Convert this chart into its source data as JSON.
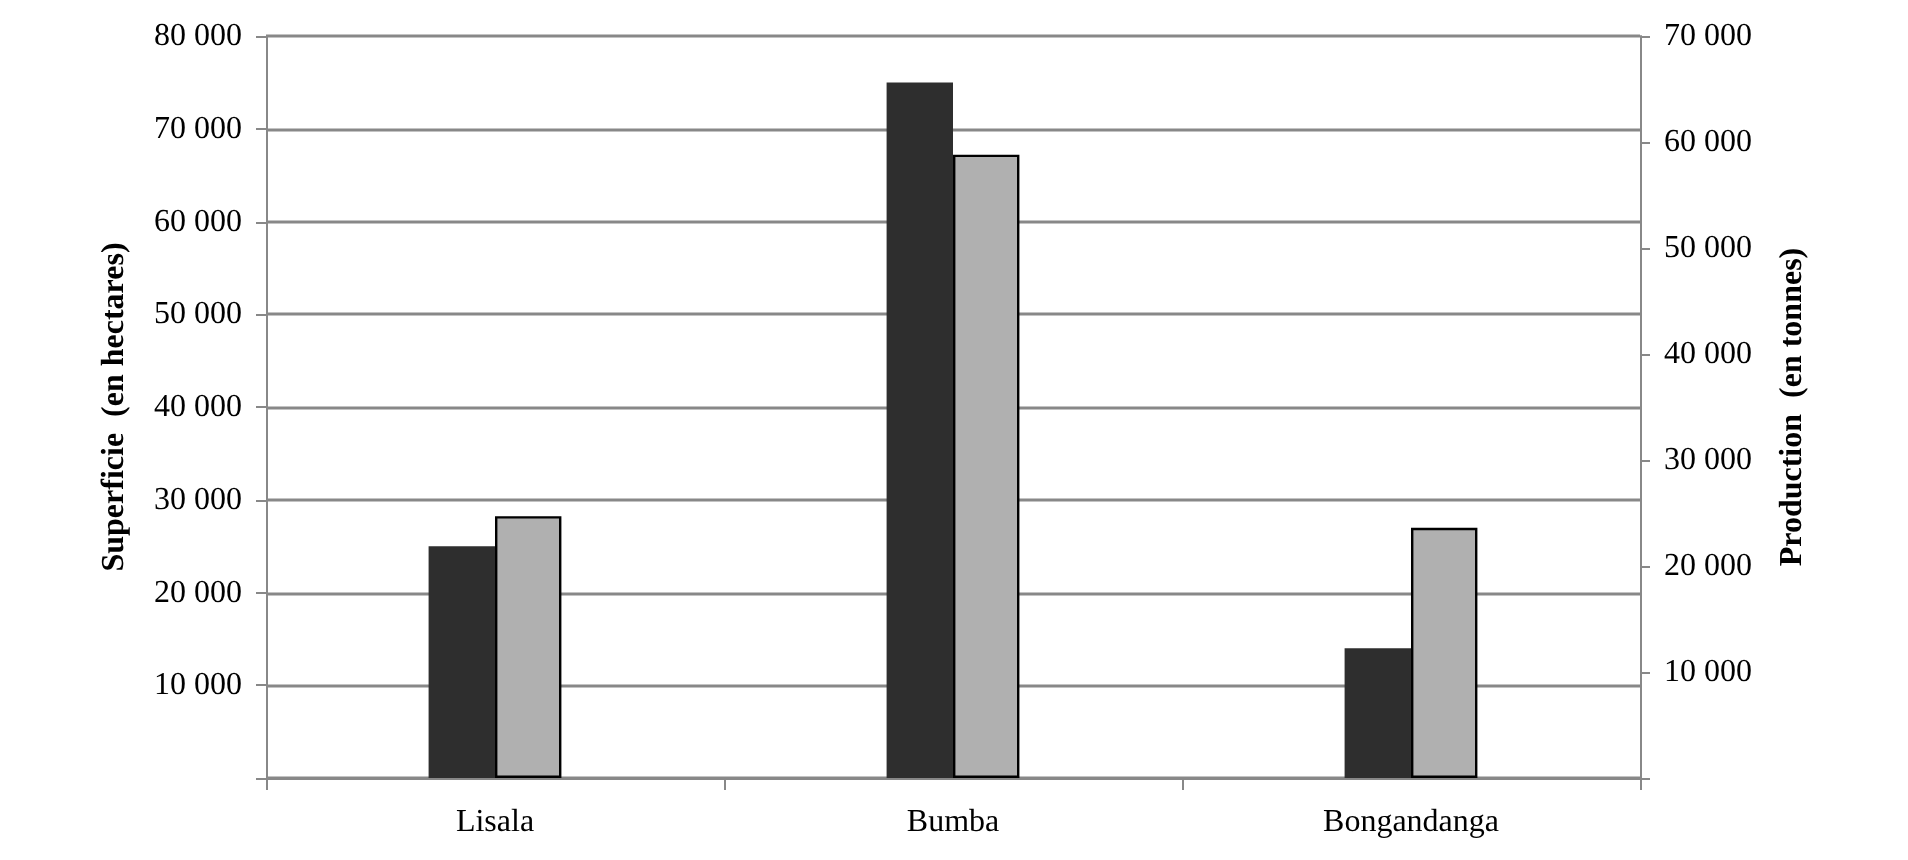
{
  "chart_data": {
    "type": "bar",
    "categories": [
      "Lisala",
      "Bumba",
      "Bongandanga"
    ],
    "series": [
      {
        "color": "#2e2e2e",
        "values": [
          25000,
          75000,
          14000
        ]
      },
      {
        "color": "#b0b0b0",
        "values": [
          24700,
          58800,
          23600
        ],
        "axis": "y2"
      }
    ],
    "ylabel": "Superficie  (en hectares)",
    "y2label": "Production  (en tonnes)",
    "ylim": [
      0,
      80000
    ],
    "yticks": [
      {
        "value": 0,
        "label": null
      },
      {
        "value": 10000,
        "label": "10 000"
      },
      {
        "value": 20000,
        "label": "20 000"
      },
      {
        "value": 30000,
        "label": "30 000"
      },
      {
        "value": 40000,
        "label": "40 000"
      },
      {
        "value": 50000,
        "label": "50 000"
      },
      {
        "value": 60000,
        "label": "60 000"
      },
      {
        "value": 70000,
        "label": "70 000"
      },
      {
        "value": 80000,
        "label": "80 000"
      }
    ],
    "y2lim": [
      0,
      70000
    ],
    "y2ticks": [
      {
        "value": 0,
        "label": null
      },
      {
        "value": 10000,
        "label": "10 000"
      },
      {
        "value": 20000,
        "label": "20 000"
      },
      {
        "value": 30000,
        "label": "30 000"
      },
      {
        "value": 40000,
        "label": "40 000"
      },
      {
        "value": 50000,
        "label": "50 000"
      },
      {
        "value": 60000,
        "label": "60 000"
      },
      {
        "value": 70000,
        "label": "70 000"
      }
    ],
    "grid": "y",
    "legend": false
  }
}
